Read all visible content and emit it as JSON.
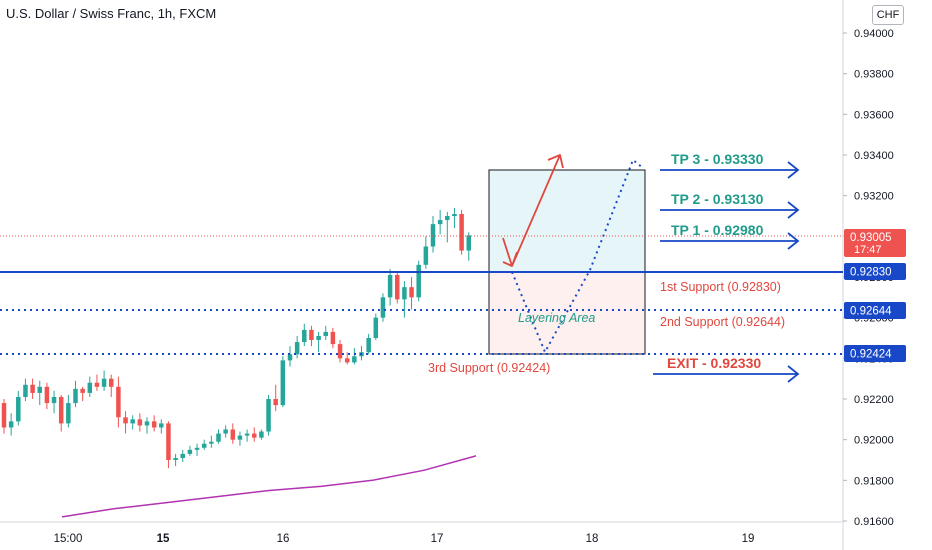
{
  "header": {
    "title": "U.S. Dollar / Swiss Franc, 1h, FXCM",
    "currency": "CHF"
  },
  "colors": {
    "up": "#26a69a",
    "down": "#ef5350",
    "blue": "#1848c8",
    "teal": "#1f9c8a",
    "red": "#e0483f",
    "ma": "#b232b2",
    "price_line": "#ef5350",
    "grid_text": "#131722"
  },
  "chart_data": {
    "type": "candlestick",
    "y_axis": {
      "range": [
        0.916,
        0.9405
      ],
      "ticks": [
        "0.94000",
        "0.93800",
        "0.93600",
        "0.93400",
        "0.93200",
        "0.93000",
        "0.92800",
        "0.92600",
        "0.92400",
        "0.92200",
        "0.92000",
        "0.91800",
        "0.91600"
      ]
    },
    "x_axis": {
      "labels": [
        "15:00",
        "15",
        "16",
        "17",
        "18",
        "19"
      ]
    },
    "candles": [
      [
        0.9218,
        0.922,
        0.9203,
        0.9206
      ],
      [
        0.9206,
        0.9213,
        0.9202,
        0.9209
      ],
      [
        0.9209,
        0.9224,
        0.9207,
        0.9221
      ],
      [
        0.9221,
        0.923,
        0.9219,
        0.9227
      ],
      [
        0.9227,
        0.923,
        0.922,
        0.9223
      ],
      [
        0.9223,
        0.9229,
        0.9217,
        0.9226
      ],
      [
        0.9226,
        0.9228,
        0.9215,
        0.9218
      ],
      [
        0.9218,
        0.9224,
        0.9213,
        0.9221
      ],
      [
        0.9221,
        0.9222,
        0.9204,
        0.9208
      ],
      [
        0.9208,
        0.9222,
        0.9206,
        0.9218
      ],
      [
        0.9218,
        0.9229,
        0.9216,
        0.9225
      ],
      [
        0.9225,
        0.9226,
        0.9219,
        0.9223
      ],
      [
        0.9223,
        0.9231,
        0.9221,
        0.9228
      ],
      [
        0.9228,
        0.9232,
        0.9224,
        0.9226
      ],
      [
        0.9226,
        0.9234,
        0.9224,
        0.923
      ],
      [
        0.923,
        0.9232,
        0.9221,
        0.9226
      ],
      [
        0.9226,
        0.9231,
        0.9206,
        0.9211
      ],
      [
        0.9211,
        0.9214,
        0.9203,
        0.9208
      ],
      [
        0.9208,
        0.9212,
        0.9205,
        0.921
      ],
      [
        0.921,
        0.9213,
        0.9204,
        0.9207
      ],
      [
        0.9207,
        0.9211,
        0.9203,
        0.9209
      ],
      [
        0.9209,
        0.9212,
        0.9204,
        0.9206
      ],
      [
        0.9206,
        0.921,
        0.9203,
        0.9208
      ],
      [
        0.9208,
        0.9209,
        0.9186,
        0.919
      ],
      [
        0.919,
        0.9193,
        0.9187,
        0.9191
      ],
      [
        0.9191,
        0.9195,
        0.9189,
        0.9193
      ],
      [
        0.9193,
        0.9197,
        0.9192,
        0.9195
      ],
      [
        0.9195,
        0.9198,
        0.9192,
        0.9196
      ],
      [
        0.9196,
        0.92,
        0.9195,
        0.9198
      ],
      [
        0.9198,
        0.9202,
        0.9196,
        0.9199
      ],
      [
        0.9199,
        0.9205,
        0.9198,
        0.9203
      ],
      [
        0.9203,
        0.9207,
        0.9201,
        0.9205
      ],
      [
        0.9205,
        0.9208,
        0.9198,
        0.92
      ],
      [
        0.92,
        0.9204,
        0.9197,
        0.9202
      ],
      [
        0.9202,
        0.9205,
        0.9199,
        0.9203
      ],
      [
        0.9203,
        0.9206,
        0.9199,
        0.9201
      ],
      [
        0.9201,
        0.9205,
        0.92,
        0.9204
      ],
      [
        0.9204,
        0.9222,
        0.9202,
        0.922
      ],
      [
        0.922,
        0.9227,
        0.9214,
        0.9217
      ],
      [
        0.9217,
        0.9241,
        0.9216,
        0.9239
      ],
      [
        0.9239,
        0.9246,
        0.9236,
        0.9242
      ],
      [
        0.9242,
        0.9251,
        0.924,
        0.9248
      ],
      [
        0.9248,
        0.9257,
        0.9246,
        0.9254
      ],
      [
        0.9254,
        0.9256,
        0.9246,
        0.9249
      ],
      [
        0.9249,
        0.9253,
        0.9243,
        0.9251
      ],
      [
        0.9251,
        0.9256,
        0.9249,
        0.9253
      ],
      [
        0.9253,
        0.9255,
        0.9245,
        0.9247
      ],
      [
        0.9247,
        0.9249,
        0.9238,
        0.924
      ],
      [
        0.924,
        0.9243,
        0.9237,
        0.9238
      ],
      [
        0.9238,
        0.9245,
        0.9237,
        0.9241
      ],
      [
        0.9241,
        0.9246,
        0.9239,
        0.9243
      ],
      [
        0.9243,
        0.9252,
        0.9242,
        0.925
      ],
      [
        0.925,
        0.9262,
        0.9249,
        0.926
      ],
      [
        0.926,
        0.9272,
        0.9258,
        0.927
      ],
      [
        0.927,
        0.9284,
        0.9266,
        0.9281
      ],
      [
        0.9281,
        0.9283,
        0.9267,
        0.9269
      ],
      [
        0.9269,
        0.9278,
        0.926,
        0.9275
      ],
      [
        0.9275,
        0.928,
        0.9264,
        0.927
      ],
      [
        0.927,
        0.9288,
        0.9268,
        0.9286
      ],
      [
        0.9286,
        0.93,
        0.9284,
        0.9295
      ],
      [
        0.9295,
        0.931,
        0.9292,
        0.9306
      ],
      [
        0.9306,
        0.9313,
        0.9301,
        0.9308
      ],
      [
        0.9308,
        0.9312,
        0.9297,
        0.931
      ],
      [
        0.931,
        0.9314,
        0.9304,
        0.9311
      ],
      [
        0.9311,
        0.9313,
        0.9291,
        0.9293
      ],
      [
        0.9293,
        0.9302,
        0.9288,
        0.93005
      ]
    ],
    "moving_average": [
      0.9162,
      0.9166,
      0.9169,
      0.9172,
      0.9175,
      0.9177,
      0.918,
      0.9185,
      0.9192
    ],
    "levels": {
      "current_price": {
        "value": "0.93005",
        "countdown": "17:47"
      },
      "support_1": {
        "value": "0.92830",
        "label": "1st Support (0.92830)"
      },
      "support_2": {
        "value": "0.92644",
        "label": "2nd Support (0.92644)"
      },
      "support_3": {
        "value": "0.92424",
        "label": "3rd Support  (0.92424)"
      }
    },
    "annotations": {
      "tp3": "TP 3 - 0.93330",
      "tp2": "TP 2 - 0.93130",
      "tp1": "TP 1 - 0.92980",
      "exit": "EXIT - 0.92330",
      "layering_area": "Layering Area"
    }
  }
}
